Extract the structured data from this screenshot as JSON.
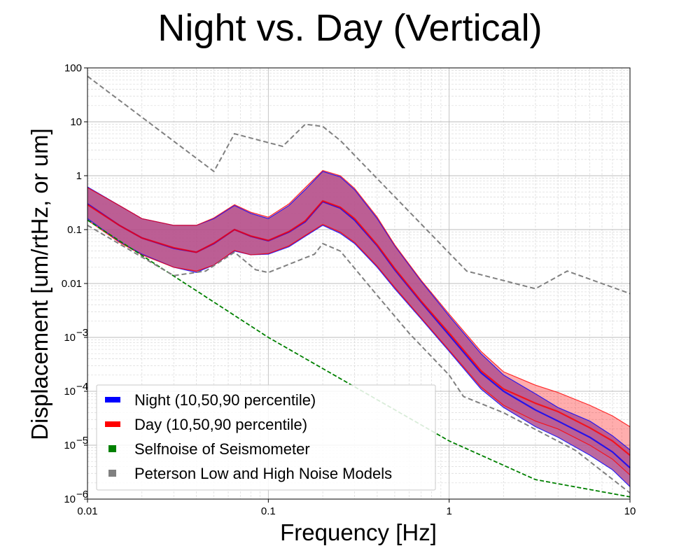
{
  "chart_data": {
    "type": "line",
    "title": "Night vs. Day (Vertical)",
    "xlabel": "Frequency [Hz]",
    "ylabel": "Displacement [um/rtHz, or um]",
    "xscale": "log",
    "yscale": "log",
    "xlim": [
      0.01,
      10
    ],
    "ylim": [
      1e-06,
      100
    ],
    "grid": "major and minor",
    "legend_position": "lower-left",
    "x_ticks": [
      {
        "value": 0.01,
        "label": "0.01"
      },
      {
        "value": 0.1,
        "label": "0.1"
      },
      {
        "value": 1,
        "label": "1"
      },
      {
        "value": 10,
        "label": "10"
      }
    ],
    "y_ticks": [
      {
        "value": 100,
        "label": "100"
      },
      {
        "value": 10,
        "label": "10"
      },
      {
        "value": 1,
        "label": "1"
      },
      {
        "value": 0.1,
        "label": "0.1"
      },
      {
        "value": 0.01,
        "label": "0.01"
      },
      {
        "value": 0.001,
        "label": "10",
        "exp": "−3"
      },
      {
        "value": 0.0001,
        "label": "10",
        "exp": "−4"
      },
      {
        "value": 1e-05,
        "label": "10",
        "exp": "−5"
      },
      {
        "value": 1e-06,
        "label": "10",
        "exp": "−6"
      }
    ],
    "colors": {
      "night": "#0000ff",
      "day": "#ff0000",
      "selfnoise": "#008000",
      "peterson": "#808080",
      "overlap_fill": "#b0508f"
    },
    "series": [
      {
        "name": "Night (10,50,90 percentile)",
        "key": "night",
        "x": [
          0.01,
          0.015,
          0.02,
          0.03,
          0.04,
          0.05,
          0.065,
          0.08,
          0.1,
          0.13,
          0.16,
          0.2,
          0.25,
          0.3,
          0.4,
          0.5,
          0.7,
          1.0,
          1.5,
          2.0,
          3.0,
          4.0,
          6.0,
          8.0,
          10.0
        ],
        "p10": [
          0.16,
          0.06,
          0.035,
          0.02,
          0.016,
          0.022,
          0.04,
          0.034,
          0.035,
          0.048,
          0.075,
          0.12,
          0.085,
          0.055,
          0.02,
          0.008,
          0.0022,
          0.00055,
          0.00011,
          5e-05,
          2.2e-05,
          1.4e-05,
          6.5e-06,
          3.5e-06,
          1.7e-06
        ],
        "p50": [
          0.3,
          0.12,
          0.07,
          0.045,
          0.038,
          0.055,
          0.1,
          0.075,
          0.062,
          0.09,
          0.14,
          0.33,
          0.25,
          0.15,
          0.05,
          0.018,
          0.0045,
          0.0011,
          0.00022,
          0.0001,
          4.5e-05,
          2.8e-05,
          1.4e-05,
          7.5e-06,
          3.8e-06
        ],
        "p90": [
          0.62,
          0.28,
          0.16,
          0.12,
          0.12,
          0.16,
          0.28,
          0.2,
          0.16,
          0.28,
          0.55,
          1.2,
          0.95,
          0.55,
          0.16,
          0.05,
          0.011,
          0.0025,
          0.0005,
          0.0002,
          9e-05,
          5e-05,
          2.8e-05,
          1.5e-05,
          8.2e-06
        ]
      },
      {
        "name": "Day (10,50,90 percentile)",
        "key": "day",
        "x": [
          0.01,
          0.015,
          0.02,
          0.03,
          0.04,
          0.05,
          0.065,
          0.08,
          0.1,
          0.13,
          0.16,
          0.2,
          0.25,
          0.3,
          0.4,
          0.5,
          0.7,
          1.0,
          1.5,
          2.0,
          3.0,
          4.0,
          6.0,
          8.0,
          10.0
        ],
        "p10": [
          0.15,
          0.058,
          0.034,
          0.02,
          0.017,
          0.022,
          0.041,
          0.034,
          0.036,
          0.05,
          0.078,
          0.125,
          0.09,
          0.058,
          0.021,
          0.0085,
          0.0023,
          0.00058,
          0.00012,
          5.5e-05,
          2.8e-05,
          2e-05,
          1e-05,
          5.5e-06,
          2.8e-06
        ],
        "p50": [
          0.29,
          0.12,
          0.07,
          0.046,
          0.038,
          0.056,
          0.1,
          0.076,
          0.063,
          0.092,
          0.145,
          0.34,
          0.26,
          0.16,
          0.052,
          0.019,
          0.0047,
          0.0012,
          0.00024,
          0.00011,
          6e-05,
          4.2e-05,
          2.1e-05,
          1.2e-05,
          6.5e-06
        ],
        "p90": [
          0.6,
          0.28,
          0.16,
          0.12,
          0.12,
          0.165,
          0.29,
          0.21,
          0.17,
          0.3,
          0.6,
          1.25,
          1.0,
          0.58,
          0.17,
          0.052,
          0.0115,
          0.0027,
          0.00055,
          0.00023,
          0.00013,
          9.5e-05,
          5.5e-05,
          3.5e-05,
          2.2e-05
        ]
      },
      {
        "name": "Selfnoise of Seismometer",
        "key": "selfnoise",
        "x": [
          0.01,
          0.1,
          1.0,
          3.0,
          10.0
        ],
        "y": [
          0.15,
          0.001,
          1.2e-05,
          2.3e-06,
          1.1e-06
        ]
      },
      {
        "name": "Peterson Low and High Noise Models",
        "key": "peterson_high",
        "x": [
          0.01,
          0.05,
          0.065,
          0.12,
          0.16,
          0.2,
          0.25,
          1.25,
          3.0,
          4.5,
          10.0
        ],
        "y": [
          70,
          1.2,
          6.0,
          3.5,
          9.0,
          8.2,
          4.5,
          0.017,
          0.008,
          0.017,
          0.0065
        ]
      },
      {
        "key": "peterson_low",
        "x": [
          0.01,
          0.03,
          0.045,
          0.065,
          0.085,
          0.1,
          0.18,
          0.2,
          0.25,
          0.4,
          0.6,
          1.0,
          1.2,
          2.0,
          5.0,
          10.0
        ],
        "y": [
          0.12,
          0.014,
          0.017,
          0.038,
          0.018,
          0.016,
          0.035,
          0.055,
          0.04,
          0.006,
          0.0012,
          0.0002,
          8e-05,
          4e-05,
          8e-06,
          1.3e-06
        ]
      }
    ],
    "legend": [
      {
        "label": "Night (10,50,90 percentile)",
        "key": "night"
      },
      {
        "label": "Day (10,50,90 percentile)",
        "key": "day"
      },
      {
        "label": "Selfnoise of Seismometer",
        "key": "selfnoise"
      },
      {
        "label": "Peterson Low and High Noise Models",
        "key": "peterson"
      }
    ]
  }
}
